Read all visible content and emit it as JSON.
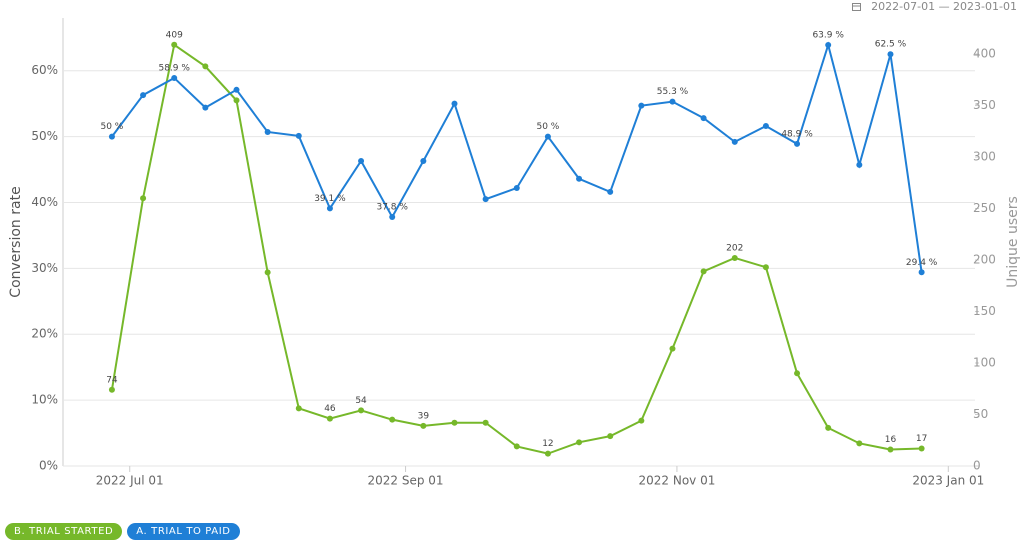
{
  "chart_data": {
    "type": "line",
    "date_range": "2022-07-01 — 2023-01-01",
    "y_label": "Conversion rate",
    "y2_label": "Unique users",
    "x": [
      "2022-06-27",
      "2022-07-04",
      "2022-07-11",
      "2022-07-18",
      "2022-07-25",
      "2022-08-01",
      "2022-08-08",
      "2022-08-15",
      "2022-08-22",
      "2022-08-29",
      "2022-09-05",
      "2022-09-12",
      "2022-09-19",
      "2022-09-26",
      "2022-10-03",
      "2022-10-10",
      "2022-10-17",
      "2022-10-24",
      "2022-10-31",
      "2022-11-07",
      "2022-11-14",
      "2022-11-21",
      "2022-11-28",
      "2022-12-05",
      "2022-12-12",
      "2022-12-19",
      "2022-12-26"
    ],
    "xlim": [
      "2022-06-16",
      "2023-01-07"
    ],
    "xticks": [
      {
        "value": "2022-07-01",
        "label": "2022 Jul 01"
      },
      {
        "value": "2022-09-01",
        "label": "2022 Sep 01"
      },
      {
        "value": "2022-11-01",
        "label": "2022 Nov 01"
      },
      {
        "value": "2023-01-01",
        "label": "2023 Jan 01"
      }
    ],
    "ylim": [
      0,
      68
    ],
    "yticks": [
      {
        "value": 0,
        "label": "0%"
      },
      {
        "value": 10,
        "label": "10%"
      },
      {
        "value": 20,
        "label": "20%"
      },
      {
        "value": 30,
        "label": "30%"
      },
      {
        "value": 40,
        "label": "40%"
      },
      {
        "value": 50,
        "label": "50%"
      },
      {
        "value": 60,
        "label": "60%"
      }
    ],
    "y2lim": [
      0,
      435
    ],
    "y2ticks": [
      0,
      50,
      100,
      150,
      200,
      250,
      300,
      350,
      400
    ],
    "grid": true,
    "series": [
      {
        "name": "B. TRIAL STARTED",
        "color": "#76b82a",
        "axis": "y2",
        "values": [
          74,
          260,
          409,
          388,
          355,
          188,
          56,
          46,
          54,
          45,
          39,
          42,
          42,
          19,
          12,
          23,
          29,
          44,
          114,
          189,
          202,
          193,
          90,
          37,
          22,
          16,
          17
        ],
        "value_labels": [
          "74",
          null,
          "409",
          null,
          null,
          null,
          null,
          "46",
          "54",
          null,
          "39",
          null,
          null,
          null,
          "12",
          null,
          null,
          null,
          null,
          null,
          "202",
          null,
          null,
          null,
          null,
          "16",
          "17"
        ]
      },
      {
        "name": "A. TRIAL TO PAID",
        "color": "#1f7fd6",
        "values": [
          50,
          56.3,
          58.9,
          54.4,
          57.1,
          50.7,
          50.1,
          39.1,
          46.3,
          37.8,
          46.3,
          55.0,
          40.5,
          42.2,
          50,
          43.6,
          41.6,
          54.7,
          55.3,
          52.8,
          49.2,
          51.6,
          48.9,
          63.9,
          45.7,
          62.5,
          29.4
        ],
        "value_labels": [
          "50 %",
          null,
          "58.9 %",
          null,
          null,
          null,
          null,
          "39.1 %",
          null,
          "37.8 %",
          null,
          null,
          null,
          null,
          "50 %",
          null,
          null,
          null,
          "55.3 %",
          null,
          null,
          null,
          "48.9 %",
          "63.9 %",
          null,
          "62.5 %",
          "29.4 %"
        ]
      }
    ]
  }
}
